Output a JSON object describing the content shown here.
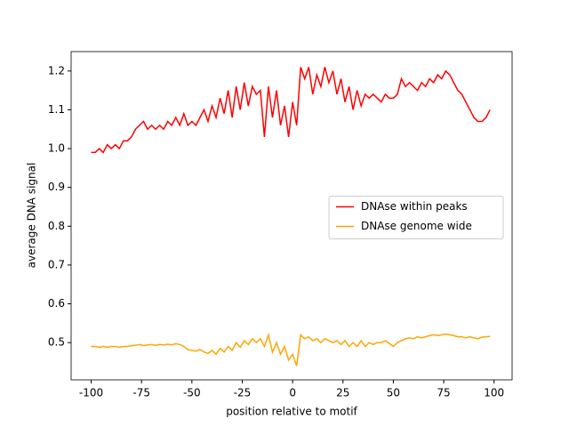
{
  "chart_data": {
    "type": "line",
    "xlabel": "position relative to motif",
    "ylabel": "average DNA signal",
    "x": [
      -100,
      -98,
      -96,
      -94,
      -92,
      -90,
      -88,
      -86,
      -84,
      -82,
      -80,
      -78,
      -76,
      -74,
      -72,
      -70,
      -68,
      -66,
      -64,
      -62,
      -60,
      -58,
      -56,
      -54,
      -52,
      -50,
      -48,
      -46,
      -44,
      -42,
      -40,
      -38,
      -36,
      -34,
      -32,
      -30,
      -28,
      -26,
      -24,
      -22,
      -20,
      -18,
      -16,
      -14,
      -12,
      -10,
      -8,
      -6,
      -4,
      -2,
      0,
      2,
      4,
      6,
      8,
      10,
      12,
      14,
      16,
      18,
      20,
      22,
      24,
      26,
      28,
      30,
      32,
      34,
      36,
      38,
      40,
      42,
      44,
      46,
      48,
      50,
      52,
      54,
      56,
      58,
      60,
      62,
      64,
      66,
      68,
      70,
      72,
      74,
      76,
      78,
      80,
      82,
      84,
      86,
      88,
      90,
      92,
      94,
      96,
      98
    ],
    "series": [
      {
        "name": "DNAse within peaks",
        "color": "#ff0000",
        "values": [
          0.99,
          0.99,
          1.0,
          0.99,
          1.01,
          1.0,
          1.01,
          1.0,
          1.02,
          1.02,
          1.03,
          1.05,
          1.06,
          1.07,
          1.05,
          1.06,
          1.05,
          1.06,
          1.05,
          1.07,
          1.06,
          1.08,
          1.06,
          1.09,
          1.06,
          1.07,
          1.06,
          1.08,
          1.1,
          1.07,
          1.11,
          1.08,
          1.13,
          1.09,
          1.15,
          1.08,
          1.16,
          1.1,
          1.17,
          1.11,
          1.16,
          1.14,
          1.15,
          1.03,
          1.16,
          1.08,
          1.15,
          1.06,
          1.11,
          1.03,
          1.12,
          1.06,
          1.21,
          1.18,
          1.21,
          1.14,
          1.19,
          1.16,
          1.21,
          1.17,
          1.2,
          1.14,
          1.18,
          1.12,
          1.16,
          1.1,
          1.15,
          1.11,
          1.14,
          1.13,
          1.14,
          1.13,
          1.12,
          1.14,
          1.13,
          1.13,
          1.14,
          1.18,
          1.16,
          1.17,
          1.16,
          1.15,
          1.17,
          1.16,
          1.18,
          1.17,
          1.19,
          1.18,
          1.2,
          1.19,
          1.17,
          1.15,
          1.14,
          1.12,
          1.1,
          1.08,
          1.07,
          1.07,
          1.08,
          1.1
        ]
      },
      {
        "name": "DNAse genome wide",
        "color": "#ffa500",
        "values": [
          0.49,
          0.49,
          0.488,
          0.49,
          0.488,
          0.49,
          0.49,
          0.488,
          0.49,
          0.49,
          0.492,
          0.493,
          0.495,
          0.492,
          0.494,
          0.495,
          0.493,
          0.495,
          0.494,
          0.496,
          0.494,
          0.497,
          0.495,
          0.49,
          0.482,
          0.48,
          0.478,
          0.482,
          0.476,
          0.472,
          0.48,
          0.47,
          0.485,
          0.476,
          0.49,
          0.48,
          0.5,
          0.488,
          0.505,
          0.495,
          0.51,
          0.5,
          0.51,
          0.49,
          0.52,
          0.475,
          0.5,
          0.47,
          0.49,
          0.455,
          0.47,
          0.44,
          0.52,
          0.51,
          0.515,
          0.505,
          0.51,
          0.5,
          0.51,
          0.505,
          0.5,
          0.505,
          0.495,
          0.505,
          0.49,
          0.5,
          0.49,
          0.505,
          0.49,
          0.5,
          0.495,
          0.5,
          0.5,
          0.505,
          0.498,
          0.49,
          0.5,
          0.505,
          0.51,
          0.512,
          0.51,
          0.515,
          0.512,
          0.515,
          0.518,
          0.52,
          0.518,
          0.52,
          0.522,
          0.52,
          0.518,
          0.515,
          0.515,
          0.512,
          0.515,
          0.512,
          0.51,
          0.514,
          0.515,
          0.516
        ]
      }
    ],
    "xlim": [
      -109.95,
      108.95
    ],
    "ylim": [
      0.404,
      1.25
    ],
    "xticks": [
      -100,
      -75,
      -50,
      -25,
      0,
      25,
      50,
      75,
      100
    ],
    "yticks": [
      0.5,
      0.6,
      0.7,
      0.8,
      0.9,
      {
        "value": 1,
        "label": "1.0"
      },
      1.1,
      1.2
    ],
    "legend": "center right"
  }
}
